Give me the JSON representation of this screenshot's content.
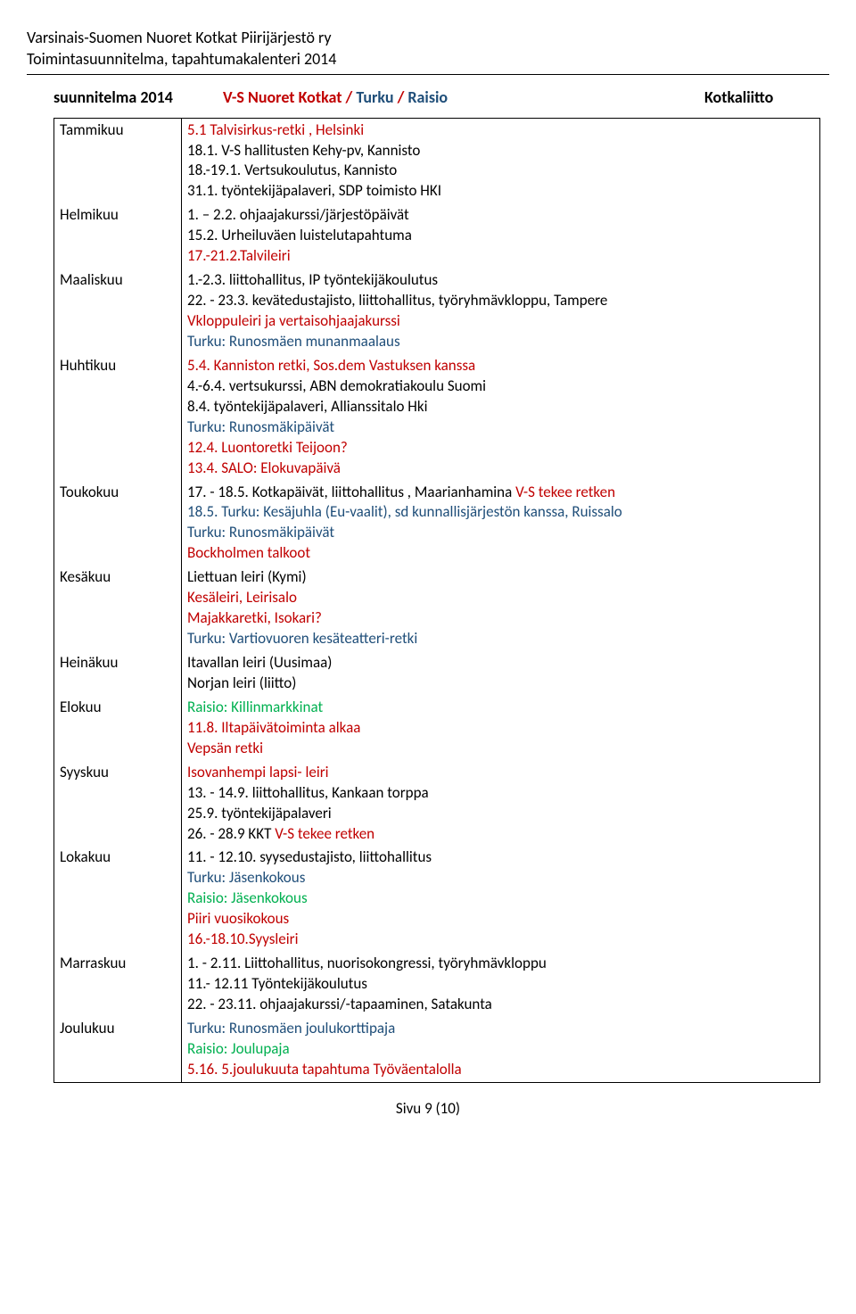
{
  "header": {
    "line1": "Varsinais-Suomen Nuoret Kotkat Piirijärjestö ry",
    "line2": "Toimintasuunnitelma, tapahtumakalenteri 2014"
  },
  "colors": {
    "red": "#c00000",
    "blue": "#1f4e79",
    "green": "#00b050",
    "black": "#000000"
  },
  "title": {
    "left": "suunnitelma 2014",
    "mid_red": "V-S Nuoret Kotkat /",
    "mid_blue1": "Turku",
    "mid_slash": "/",
    "mid_blue2": "Raisio",
    "right": "Kotkaliitto"
  },
  "months": {
    "tammikuu": {
      "label": "Tammikuu",
      "l1": "5.1 Talvisirkus-retki , Helsinki",
      "l2": "18.1. V-S hallitusten Kehy-pv, Kannisto",
      "l3": "18.-19.1. Vertsukoulutus, Kannisto",
      "l4": "31.1. työntekijäpalaveri, SDP toimisto HKI"
    },
    "helmikuu": {
      "label": "Helmikuu",
      "l1": "1. – 2.2. ohjaajakurssi/järjestöpäivät",
      "l2": "15.2. Urheiluväen luistelutapahtuma",
      "l3": "17.-21.2.Talvileiri"
    },
    "maaliskuu": {
      "label": "Maaliskuu",
      "l1": "1.-2.3. liittohallitus, IP työntekijäkoulutus",
      "l2": "22. - 23.3. kevätedustajisto, liittohallitus, työryhmävkloppu, Tampere",
      "l3": "Vkloppuleiri ja vertaisohjaajakurssi",
      "l4": "Turku: Runosmäen munanmaalaus"
    },
    "huhtikuu": {
      "label": "Huhtikuu",
      "l1": "5.4. Kanniston retki, Sos.dem Vastuksen kanssa",
      "l2": "4.-6.4. vertsukurssi, ABN demokratiakoulu Suomi",
      "l3": "8.4. työntekijäpalaveri, Allianssitalo Hki",
      "l4": "Turku: Runosmäkipäivät",
      "l5": "12.4. Luontoretki  Teijoon?",
      "l6": "13.4. SALO: Elokuvapäivä"
    },
    "toukokuu": {
      "label": "Toukokuu",
      "l1a": "17. - 18.5. Kotkapäivät, liittohallitus , Maarianhamina",
      "l1b": " V-S tekee retken",
      "l2": "18.5. Turku: Kesäjuhla (Eu-vaalit), sd kunnallisjärjestön kanssa, Ruissalo",
      "l3": "Turku: Runosmäkipäivät",
      "l4": "Bockholmen talkoot"
    },
    "kesakuu": {
      "label": "Kesäkuu",
      "l1": "Liettuan leiri (Kymi)",
      "l2": "Kesäleiri, Leirisalo",
      "l3": "Majakkaretki, Isokari?",
      "l4": "Turku: Vartiovuoren kesäteatteri-retki"
    },
    "heinakuu": {
      "label": "Heinäkuu",
      "l1": "Itavallan leiri (Uusimaa)",
      "l2": "Norjan leiri (liitto)"
    },
    "elokuu": {
      "label": "Elokuu",
      "l1": "Raisio: Killinmarkkinat",
      "l2": "11.8. Iltapäivätoiminta alkaa",
      "l3": "Vepsän retki"
    },
    "syyskuu": {
      "label": "Syyskuu",
      "l1": " Isovanhempi lapsi- leiri",
      "l2": "13. - 14.9. liittohallitus, Kankaan torppa",
      "l3": "25.9. työntekijäpalaveri",
      "l4a": "26. - 28.9 KKT",
      "l4b": " V-S tekee retken"
    },
    "lokakuu": {
      "label": "Lokakuu",
      "l1": "11. - 12.10. syysedustajisto, liittohallitus",
      "l2": "Turku: Jäsenkokous",
      "l3": "Raisio: Jäsenkokous",
      "l4": "Piiri vuosikokous",
      "l5": "16.-18.10.Syysleiri"
    },
    "marraskuu": {
      "label": "Marraskuu",
      "l1": "1. - 2.11. Liittohallitus, nuorisokongressi, työryhmävkloppu",
      "l2": "11.- 12.11 Työntekijäkoulutus",
      "l3": "22. - 23.11. ohjaajakurssi/-tapaaminen, Satakunta"
    },
    "joulukuu": {
      "label": "Joulukuu",
      "l1": "Turku: Runosmäen joulukorttipaja",
      "l2": "Raisio: Joulupaja",
      "l3": "5.16. 5.joulukuuta tapahtuma Työväentalolla"
    }
  },
  "footer": "Sivu 9 (10)"
}
